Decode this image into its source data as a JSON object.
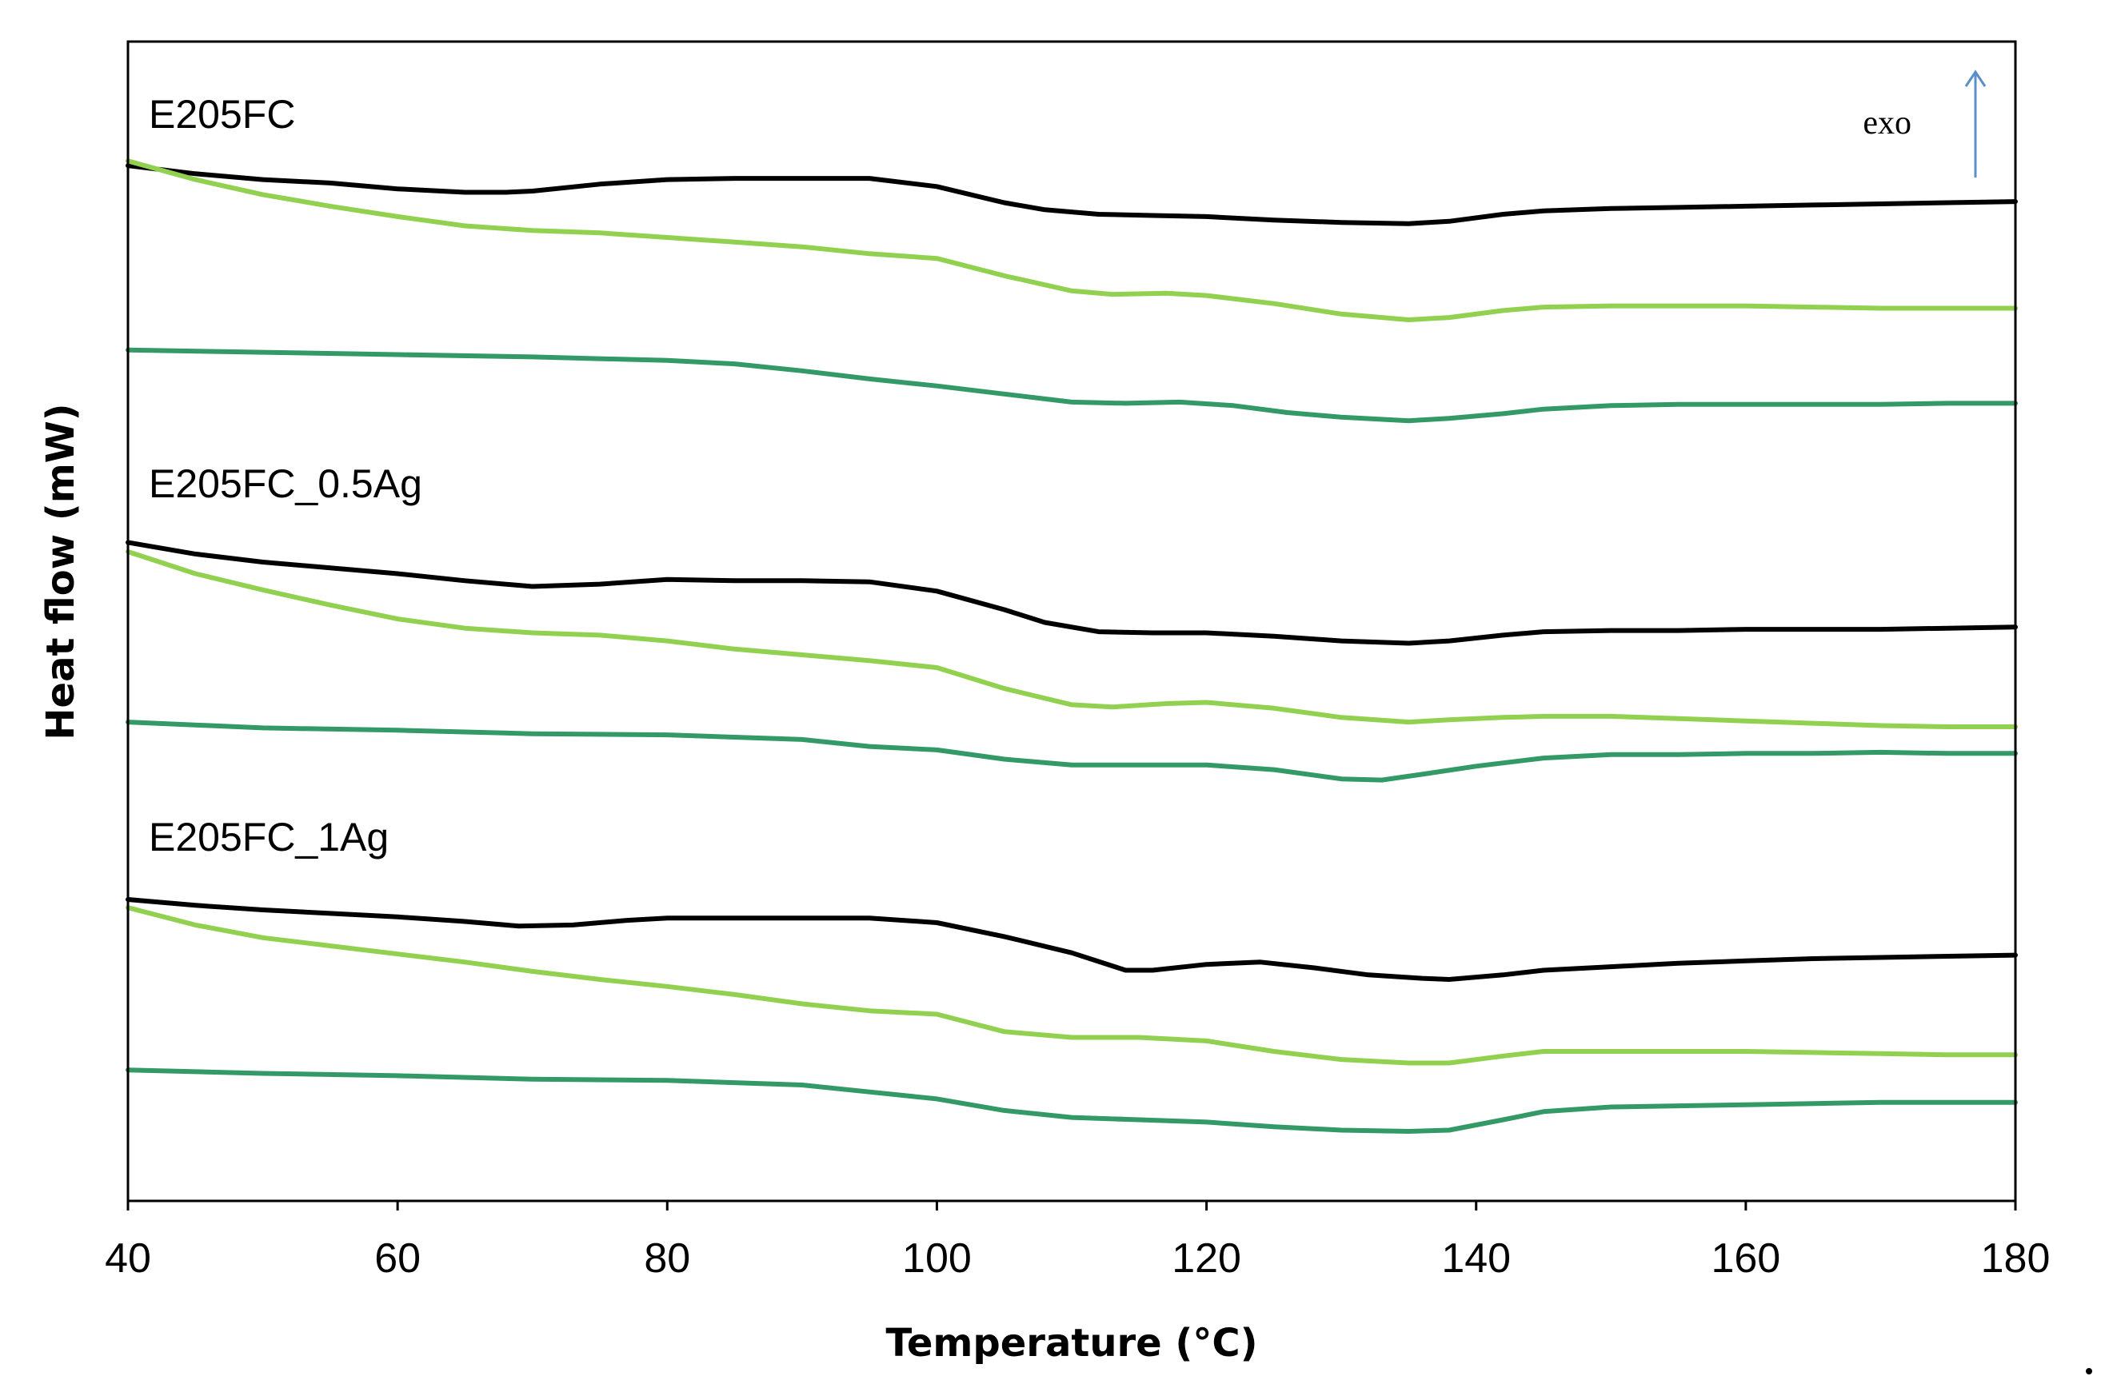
{
  "chart_data": {
    "type": "line",
    "title": "",
    "xlabel": "Temperature (°C)",
    "ylabel": "Heat flow (mW)",
    "xlim": [
      40,
      180
    ],
    "ylim": [
      0,
      100
    ],
    "x_ticks": [
      "40",
      "60",
      "80",
      "100",
      "120",
      "140",
      "160",
      "180"
    ],
    "y_ticks": [],
    "grid": false,
    "annotation": "exo",
    "colors": {
      "black": "#000000",
      "light_green": "#92D050",
      "dark_green": "#339966",
      "arrow": "#5B8FC9"
    },
    "groups": [
      {
        "label": "E205FC",
        "series": [
          {
            "name": "E205FC black",
            "color": "#000000",
            "x": [
              40,
              45,
              50,
              55,
              60,
              65,
              68,
              70,
              75,
              80,
              85,
              90,
              95,
              100,
              105,
              108,
              112,
              116,
              120,
              125,
              130,
              135,
              138,
              142,
              145,
              150,
              155,
              160,
              165,
              170,
              175,
              180
            ],
            "y": [
              89.3,
              88.6,
              88.1,
              87.8,
              87.3,
              87.0,
              87.0,
              87.1,
              87.7,
              88.1,
              88.2,
              88.2,
              88.2,
              87.5,
              86.1,
              85.5,
              85.1,
              85.0,
              84.9,
              84.6,
              84.4,
              84.3,
              84.5,
              85.1,
              85.4,
              85.6,
              85.7,
              85.8,
              85.9,
              86.0,
              86.1,
              86.2
            ]
          },
          {
            "name": "E205FC light green",
            "color": "#92D050",
            "x": [
              40,
              45,
              50,
              55,
              60,
              65,
              70,
              75,
              80,
              85,
              90,
              95,
              100,
              105,
              110,
              113,
              117,
              120,
              125,
              130,
              135,
              138,
              142,
              145,
              150,
              155,
              160,
              165,
              170,
              175,
              180
            ],
            "y": [
              89.7,
              88.1,
              86.8,
              85.8,
              84.9,
              84.1,
              83.7,
              83.5,
              83.1,
              82.7,
              82.3,
              81.7,
              81.3,
              79.8,
              78.5,
              78.2,
              78.3,
              78.1,
              77.4,
              76.5,
              76.0,
              76.2,
              76.8,
              77.1,
              77.2,
              77.2,
              77.2,
              77.1,
              77.0,
              77.0,
              77.0
            ]
          },
          {
            "name": "E205FC dark green",
            "color": "#339966",
            "x": [
              40,
              50,
              60,
              70,
              80,
              85,
              90,
              95,
              100,
              105,
              110,
              114,
              118,
              122,
              126,
              130,
              135,
              138,
              142,
              145,
              150,
              155,
              160,
              165,
              170,
              175,
              180
            ],
            "y": [
              73.4,
              73.2,
              73.0,
              72.8,
              72.5,
              72.2,
              71.6,
              70.9,
              70.3,
              69.6,
              68.9,
              68.8,
              68.9,
              68.6,
              68.0,
              67.6,
              67.3,
              67.5,
              67.9,
              68.3,
              68.6,
              68.7,
              68.7,
              68.7,
              68.7,
              68.8,
              68.8
            ]
          }
        ]
      },
      {
        "label": "E205FC_0.5Ag",
        "series": [
          {
            "name": "E205FC_0.5Ag black",
            "color": "#000000",
            "x": [
              40,
              45,
              50,
              55,
              60,
              65,
              70,
              75,
              80,
              85,
              90,
              95,
              100,
              105,
              108,
              112,
              116,
              120,
              125,
              130,
              135,
              138,
              142,
              145,
              150,
              155,
              160,
              165,
              170,
              175,
              180
            ],
            "y": [
              56.8,
              55.8,
              55.1,
              54.6,
              54.1,
              53.5,
              53.0,
              53.2,
              53.6,
              53.5,
              53.5,
              53.4,
              52.6,
              51.0,
              49.9,
              49.1,
              49.0,
              49.0,
              48.7,
              48.3,
              48.1,
              48.3,
              48.8,
              49.1,
              49.2,
              49.2,
              49.3,
              49.3,
              49.3,
              49.4,
              49.5
            ]
          },
          {
            "name": "E205FC_0.5Ag light green",
            "color": "#92D050",
            "x": [
              40,
              45,
              50,
              55,
              60,
              65,
              70,
              75,
              80,
              85,
              90,
              95,
              100,
              105,
              110,
              113,
              117,
              120,
              125,
              130,
              135,
              138,
              142,
              145,
              150,
              155,
              160,
              165,
              170,
              175,
              180
            ],
            "y": [
              56.0,
              54.1,
              52.7,
              51.4,
              50.2,
              49.4,
              49.0,
              48.8,
              48.3,
              47.6,
              47.1,
              46.6,
              46.0,
              44.2,
              42.8,
              42.6,
              42.9,
              43.0,
              42.5,
              41.7,
              41.3,
              41.5,
              41.7,
              41.8,
              41.8,
              41.6,
              41.4,
              41.2,
              41.0,
              40.9,
              40.9
            ]
          },
          {
            "name": "E205FC_0.5Ag dark green",
            "color": "#339966",
            "x": [
              40,
              50,
              60,
              70,
              80,
              90,
              95,
              100,
              105,
              110,
              115,
              120,
              125,
              130,
              133,
              136,
              140,
              145,
              150,
              155,
              160,
              165,
              170,
              175,
              180
            ],
            "y": [
              41.3,
              40.8,
              40.6,
              40.3,
              40.2,
              39.8,
              39.2,
              38.9,
              38.1,
              37.6,
              37.6,
              37.6,
              37.2,
              36.4,
              36.3,
              36.8,
              37.5,
              38.2,
              38.5,
              38.5,
              38.6,
              38.6,
              38.7,
              38.6,
              38.6
            ]
          }
        ]
      },
      {
        "label": "E205FC_1Ag",
        "series": [
          {
            "name": "E205FC_1Ag black",
            "color": "#000000",
            "x": [
              40,
              45,
              50,
              55,
              60,
              65,
              69,
              73,
              77,
              80,
              85,
              90,
              95,
              100,
              105,
              110,
              114,
              116,
              120,
              124,
              128,
              132,
              136,
              138,
              142,
              145,
              150,
              155,
              160,
              165,
              170,
              175,
              180
            ],
            "y": [
              26.0,
              25.5,
              25.1,
              24.8,
              24.5,
              24.1,
              23.7,
              23.8,
              24.2,
              24.4,
              24.4,
              24.4,
              24.4,
              24.0,
              22.8,
              21.4,
              19.9,
              19.9,
              20.4,
              20.6,
              20.1,
              19.5,
              19.2,
              19.1,
              19.5,
              19.9,
              20.2,
              20.5,
              20.7,
              20.9,
              21.0,
              21.1,
              21.2
            ]
          },
          {
            "name": "E205FC_1Ag light green",
            "color": "#92D050",
            "x": [
              40,
              45,
              50,
              55,
              60,
              65,
              70,
              75,
              80,
              85,
              90,
              95,
              100,
              105,
              110,
              115,
              120,
              125,
              130,
              135,
              138,
              142,
              145,
              150,
              155,
              160,
              165,
              170,
              175,
              180
            ],
            "y": [
              25.3,
              23.8,
              22.7,
              22.0,
              21.3,
              20.6,
              19.8,
              19.1,
              18.5,
              17.8,
              17.0,
              16.4,
              16.1,
              14.6,
              14.1,
              14.1,
              13.8,
              12.9,
              12.2,
              11.9,
              11.9,
              12.5,
              12.9,
              12.9,
              12.9,
              12.9,
              12.8,
              12.7,
              12.6,
              12.6
            ]
          },
          {
            "name": "E205FC_1Ag dark green",
            "color": "#339966",
            "x": [
              40,
              50,
              60,
              70,
              80,
              90,
              95,
              100,
              105,
              110,
              115,
              120,
              125,
              130,
              135,
              138,
              142,
              145,
              150,
              155,
              160,
              165,
              170,
              175,
              180
            ],
            "y": [
              11.3,
              11.0,
              10.8,
              10.5,
              10.4,
              10.0,
              9.4,
              8.8,
              7.8,
              7.2,
              7.0,
              6.8,
              6.4,
              6.1,
              6.0,
              6.1,
              7.0,
              7.7,
              8.1,
              8.2,
              8.3,
              8.4,
              8.5,
              8.5,
              8.5
            ]
          }
        ]
      }
    ]
  }
}
